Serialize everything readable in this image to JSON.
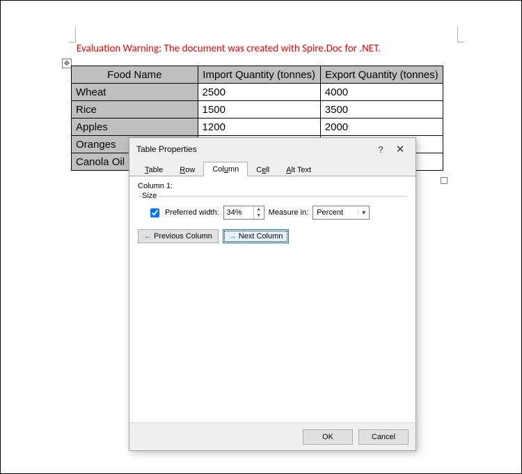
{
  "warning_text": "Evaluation Warning: The document was created with Spire.Doc for .NET.",
  "table": {
    "headers": [
      "Food Name",
      "Import Quantity (tonnes)",
      "Export Quantity (tonnes)"
    ],
    "rows": [
      [
        "Wheat",
        "2500",
        "4000"
      ],
      [
        "Rice",
        "1500",
        "3500"
      ],
      [
        "Apples",
        "1200",
        "2000"
      ],
      [
        "Oranges",
        "",
        ""
      ],
      [
        "Canola Oil",
        "",
        ""
      ]
    ],
    "col0_background": "#bfbfbf"
  },
  "dialog": {
    "title": "Table Properties",
    "help": "?",
    "close": "✕",
    "tabs": {
      "table": "Table",
      "row": "Row",
      "column": "Column",
      "cell": "Cell",
      "alttext": "Alt Text",
      "active": "column"
    },
    "column_tab": {
      "label": "Column 1:",
      "size_legend": "Size",
      "preferred_width_label": "Preferred width:",
      "preferred_width_value": "34%",
      "measure_in_label": "Measure in:",
      "measure_in_value": "Percent",
      "prev_column": "Previous Column",
      "next_column": "Next Column"
    },
    "buttons": {
      "ok": "OK",
      "cancel": "Cancel"
    }
  }
}
